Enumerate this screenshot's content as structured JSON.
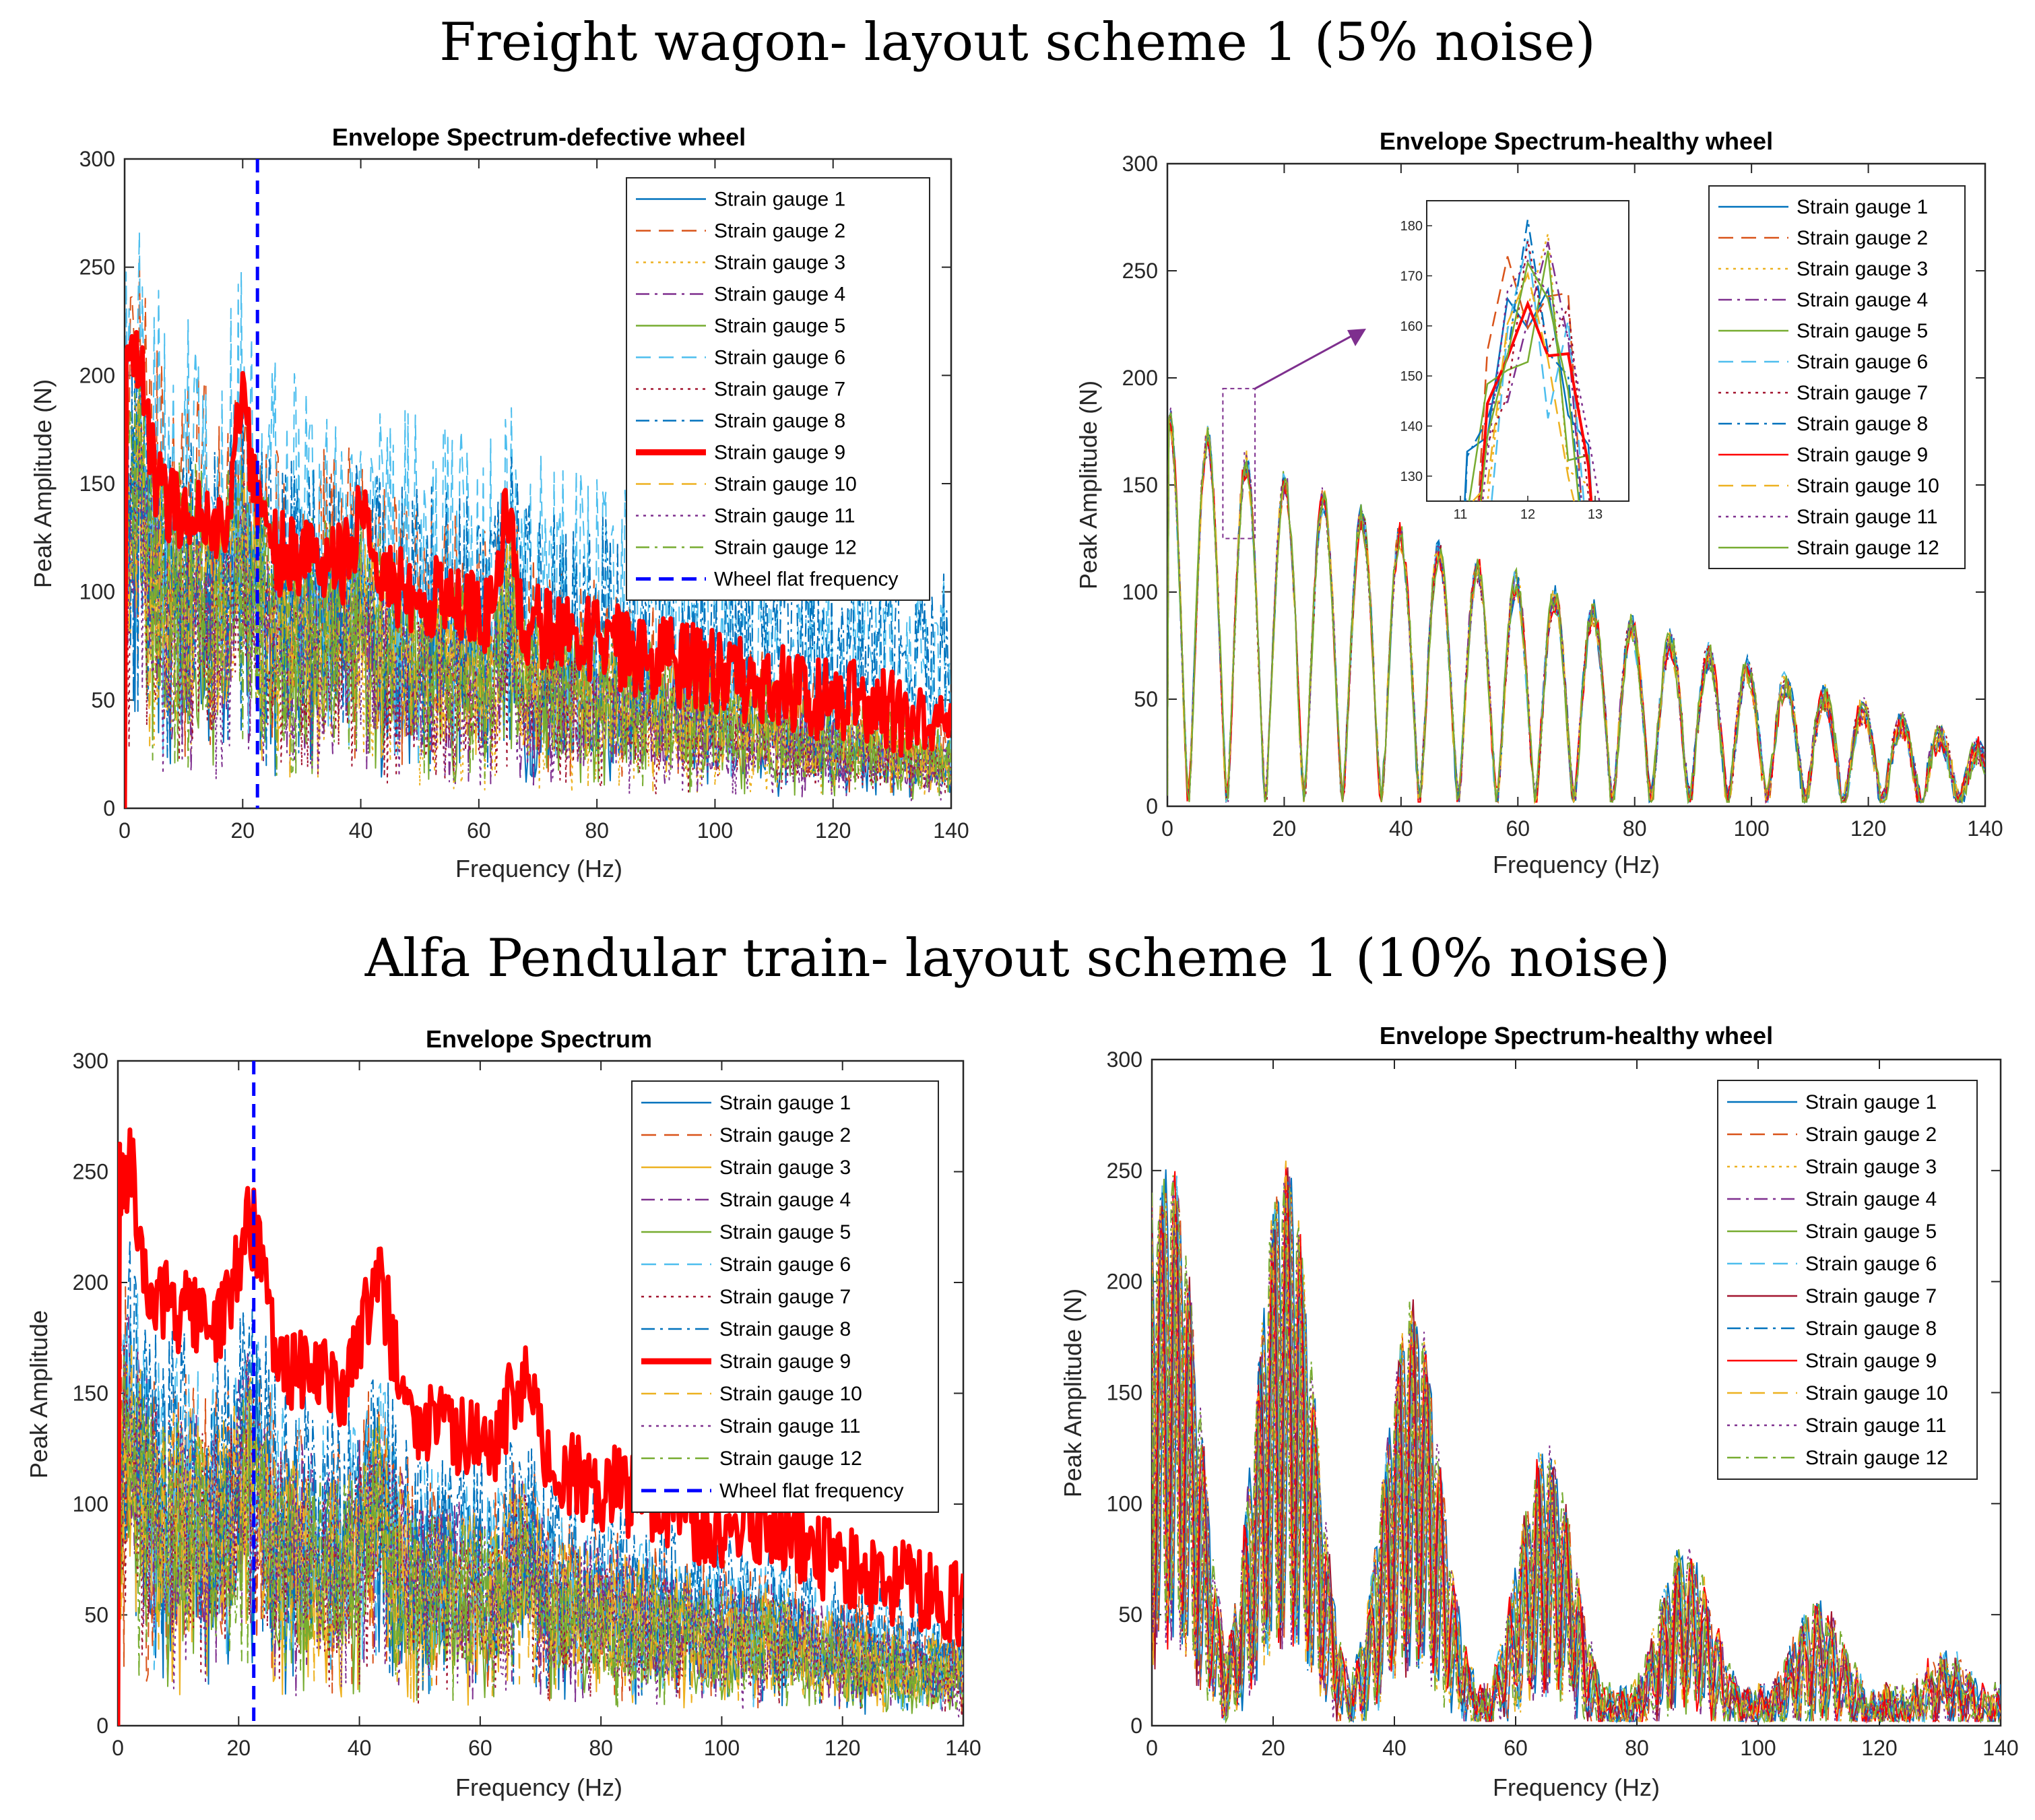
{
  "headings": {
    "top": "Freight wagon- layout scheme 1 (5% noise)",
    "bottom": "Alfa Pendular train- layout scheme 1 (10% noise)"
  },
  "colors": {
    "sg1": "#0072BD",
    "sg2": "#D95319",
    "sg3": "#EDB120",
    "sg4": "#7E2F8E",
    "sg5": "#77AC30",
    "sg6": "#4DBEEE",
    "sg7": "#A2142F",
    "sg8": "#0072BD",
    "sg9": "#FF0000",
    "sg10": "#EDB120",
    "sg11": "#7E2F8E",
    "sg12": "#77AC30",
    "flat": "#0000FF",
    "inset_arrow": "#7E2F8E"
  },
  "chart_data": [
    {
      "id": "freight-defective",
      "type": "line",
      "title": "Envelope Spectrum-defective wheel",
      "xlabel": "Frequency (Hz)",
      "ylabel": "Peak Amplitude (N)",
      "xlim": [
        0,
        140
      ],
      "ylim": [
        0,
        300
      ],
      "xticks": [
        "0",
        "20",
        "40",
        "60",
        "80",
        "100",
        "120",
        "140"
      ],
      "yticks": [
        "0",
        "50",
        "100",
        "150",
        "200",
        "250",
        "300"
      ],
      "legend_position": "top-right",
      "wheel_flat_frequency": 22.5,
      "dominant_series": "Strain gauge 9",
      "series": [
        {
          "name": "Strain gauge 1",
          "dash": "solid",
          "mean_start": 105,
          "mean_end": 20
        },
        {
          "name": "Strain gauge 2",
          "dash": "dash",
          "mean_start": 150,
          "mean_end": 25
        },
        {
          "name": "Strain gauge 3",
          "dash": "dot",
          "mean_start": 95,
          "mean_end": 18
        },
        {
          "name": "Strain gauge 4",
          "dash": "dashdot",
          "mean_start": 100,
          "mean_end": 18
        },
        {
          "name": "Strain gauge 5",
          "dash": "solid",
          "mean_start": 105,
          "mean_end": 20
        },
        {
          "name": "Strain gauge 6",
          "dash": "dash",
          "mean_start": 160,
          "mean_end": 70
        },
        {
          "name": "Strain gauge 7",
          "dash": "dot",
          "mean_start": 95,
          "mean_end": 18
        },
        {
          "name": "Strain gauge 8",
          "dash": "dashdot",
          "mean_start": 120,
          "mean_end": 70
        },
        {
          "name": "Strain gauge 9",
          "dash": "solid",
          "mean_start": 150,
          "mean_end": 38
        },
        {
          "name": "Strain gauge 10",
          "dash": "dash",
          "mean_start": 110,
          "mean_end": 25
        },
        {
          "name": "Strain gauge 11",
          "dash": "dot",
          "mean_start": 95,
          "mean_end": 18
        },
        {
          "name": "Strain gauge 12",
          "dash": "dashdot",
          "mean_start": 120,
          "mean_end": 25
        }
      ],
      "extra_legend": "Wheel flat frequency"
    },
    {
      "id": "freight-healthy",
      "type": "line",
      "title": "Envelope Spectrum-healthy wheel",
      "xlabel": "Frequency (Hz)",
      "ylabel": "Peak Amplitude (N)",
      "xlim": [
        0,
        140
      ],
      "ylim": [
        0,
        300
      ],
      "xticks": [
        "0",
        "20",
        "40",
        "60",
        "80",
        "100",
        "120",
        "140"
      ],
      "yticks": [
        "0",
        "50",
        "100",
        "150",
        "200",
        "250",
        "300"
      ],
      "legend_position": "top-right",
      "peak_spacing_hz": 6.6,
      "peak_start": 185,
      "peak_end": 25,
      "series": [
        {
          "name": "Strain gauge 1",
          "dash": "solid"
        },
        {
          "name": "Strain gauge 2",
          "dash": "dash"
        },
        {
          "name": "Strain gauge 3",
          "dash": "dot"
        },
        {
          "name": "Strain gauge 4",
          "dash": "dashdot"
        },
        {
          "name": "Strain gauge 5",
          "dash": "solid"
        },
        {
          "name": "Strain gauge 6",
          "dash": "dash"
        },
        {
          "name": "Strain gauge 7",
          "dash": "dot"
        },
        {
          "name": "Strain gauge 8",
          "dash": "dashdot"
        },
        {
          "name": "Strain gauge 9",
          "dash": "solid"
        },
        {
          "name": "Strain gauge 10",
          "dash": "dash"
        },
        {
          "name": "Strain gauge 11",
          "dash": "dot"
        },
        {
          "name": "Strain gauge 12",
          "dash": "solid"
        }
      ],
      "inset": {
        "xlim": [
          10.5,
          13.5
        ],
        "ylim": [
          125,
          185
        ],
        "xticks": [
          "11",
          "12",
          "13"
        ],
        "yticks": [
          "130",
          "140",
          "150",
          "160",
          "170",
          "180"
        ],
        "zoom_region_x": [
          9.5,
          15
        ],
        "zoom_region_y": [
          125,
          195
        ]
      }
    },
    {
      "id": "alfa-defective",
      "type": "line",
      "title": "Envelope Spectrum",
      "xlabel": "Frequency (Hz)",
      "ylabel": "Peak Amplitude",
      "xlim": [
        0,
        140
      ],
      "ylim": [
        0,
        300
      ],
      "xticks": [
        "0",
        "20",
        "40",
        "60",
        "80",
        "100",
        "120",
        "140"
      ],
      "yticks": [
        "0",
        "50",
        "100",
        "150",
        "200",
        "250",
        "300"
      ],
      "legend_position": "top-right",
      "wheel_flat_frequency": 22.5,
      "dominant_series": "Strain gauge 9",
      "series": [
        {
          "name": "Strain gauge 1",
          "dash": "solid",
          "mean_start": 110,
          "mean_end": 25
        },
        {
          "name": "Strain gauge 2",
          "dash": "dash",
          "mean_start": 115,
          "mean_end": 30
        },
        {
          "name": "Strain gauge 3",
          "dash": "solid",
          "mean_start": 95,
          "mean_end": 20
        },
        {
          "name": "Strain gauge 4",
          "dash": "dashdot",
          "mean_start": 110,
          "mean_end": 25
        },
        {
          "name": "Strain gauge 5",
          "dash": "solid",
          "mean_start": 95,
          "mean_end": 20
        },
        {
          "name": "Strain gauge 6",
          "dash": "dash",
          "mean_start": 120,
          "mean_end": 30
        },
        {
          "name": "Strain gauge 7",
          "dash": "dot",
          "mean_start": 100,
          "mean_end": 22
        },
        {
          "name": "Strain gauge 8",
          "dash": "dashdot",
          "mean_start": 130,
          "mean_end": 35
        },
        {
          "name": "Strain gauge 9",
          "dash": "solid",
          "mean_start": 210,
          "mean_end": 55
        },
        {
          "name": "Strain gauge 10",
          "dash": "dash",
          "mean_start": 105,
          "mean_end": 25
        },
        {
          "name": "Strain gauge 11",
          "dash": "dot",
          "mean_start": 100,
          "mean_end": 22
        },
        {
          "name": "Strain gauge 12",
          "dash": "dashdot",
          "mean_start": 100,
          "mean_end": 22
        }
      ],
      "extra_legend": "Wheel flat frequency"
    },
    {
      "id": "alfa-healthy",
      "type": "line",
      "title": "Envelope Spectrum-healthy wheel",
      "xlabel": "Frequency (Hz)",
      "ylabel": "Peak Amplitude (N)",
      "xlim": [
        0,
        140
      ],
      "ylim": [
        0,
        300
      ],
      "xticks": [
        "0",
        "20",
        "40",
        "60",
        "80",
        "100",
        "120",
        "140"
      ],
      "yticks": [
        "0",
        "50",
        "100",
        "150",
        "200",
        "250",
        "300"
      ],
      "legend_position": "top-right",
      "peak_clusters": [
        {
          "center": 3,
          "peak": 250
        },
        {
          "center": 22,
          "peak": 250
        },
        {
          "center": 43,
          "peak": 185
        },
        {
          "center": 65,
          "peak": 120
        },
        {
          "center": 88,
          "peak": 75
        },
        {
          "center": 110,
          "peak": 50
        },
        {
          "center": 131,
          "peak": 28
        }
      ],
      "series": [
        {
          "name": "Strain gauge 1",
          "dash": "solid"
        },
        {
          "name": "Strain gauge 2",
          "dash": "dash"
        },
        {
          "name": "Strain gauge 3",
          "dash": "dot"
        },
        {
          "name": "Strain gauge 4",
          "dash": "dashdot"
        },
        {
          "name": "Strain gauge 5",
          "dash": "solid"
        },
        {
          "name": "Strain gauge 6",
          "dash": "dash"
        },
        {
          "name": "Strain gauge 7",
          "dash": "solid"
        },
        {
          "name": "Strain gauge 8",
          "dash": "dashdot"
        },
        {
          "name": "Strain gauge 9",
          "dash": "solid"
        },
        {
          "name": "Strain gauge 10",
          "dash": "dash"
        },
        {
          "name": "Strain gauge 11",
          "dash": "dot"
        },
        {
          "name": "Strain gauge 12",
          "dash": "dashdot"
        }
      ]
    }
  ]
}
